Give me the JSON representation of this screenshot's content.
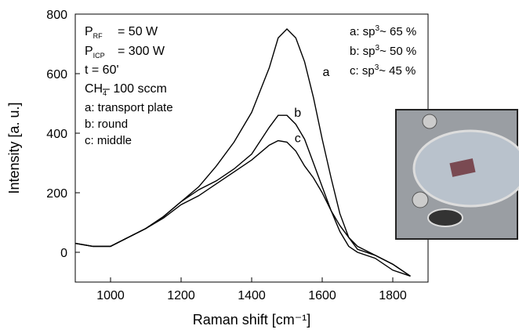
{
  "chart_data": {
    "type": "line",
    "x_label": "Raman shift [cm⁻¹]",
    "y_label": "Intensity [a. u.]",
    "x": [
      900,
      950,
      1000,
      1050,
      1100,
      1150,
      1200,
      1250,
      1300,
      1350,
      1400,
      1450,
      1475,
      1500,
      1525,
      1550,
      1575,
      1600,
      1625,
      1650,
      1675,
      1700,
      1750,
      1800,
      1850
    ],
    "series": [
      {
        "name": "a",
        "color": "#000000",
        "values": [
          30,
          20,
          20,
          50,
          80,
          120,
          170,
          220,
          290,
          370,
          470,
          620,
          720,
          750,
          720,
          640,
          520,
          380,
          250,
          130,
          50,
          10,
          -10,
          -40,
          -80
        ]
      },
      {
        "name": "b",
        "color": "#000000",
        "values": [
          30,
          20,
          20,
          50,
          80,
          120,
          170,
          210,
          240,
          280,
          330,
          420,
          460,
          460,
          430,
          380,
          300,
          220,
          140,
          70,
          20,
          0,
          -20,
          -60,
          -80
        ]
      },
      {
        "name": "c",
        "color": "#000000",
        "values": [
          30,
          20,
          20,
          50,
          80,
          115,
          160,
          190,
          230,
          270,
          310,
          360,
          375,
          370,
          340,
          290,
          250,
          200,
          140,
          90,
          50,
          20,
          -10,
          -40,
          -80
        ]
      }
    ],
    "xlim": [
      900,
      1900
    ],
    "xticks": [
      1000,
      1200,
      1400,
      1600,
      1800
    ],
    "ylim": [
      -100,
      800
    ],
    "yticks": [
      0,
      200,
      400,
      600,
      800
    ],
    "parameters": [
      [
        "P",
        "RF",
        "= 50 W"
      ],
      [
        "P",
        "ICP",
        "= 300 W"
      ],
      [
        "t = 60'"
      ],
      [
        "CH",
        "4",
        "– 100 sccm"
      ]
    ],
    "sample_labels": [
      "a: transport plate",
      "b: round",
      "c: middle"
    ],
    "sp3_labels": [
      [
        "a: sp",
        "3",
        "~ 65 %"
      ],
      [
        "b: sp",
        "3",
        "~ 50 %"
      ],
      [
        "c: sp",
        "3",
        "~ 45 %"
      ]
    ]
  }
}
